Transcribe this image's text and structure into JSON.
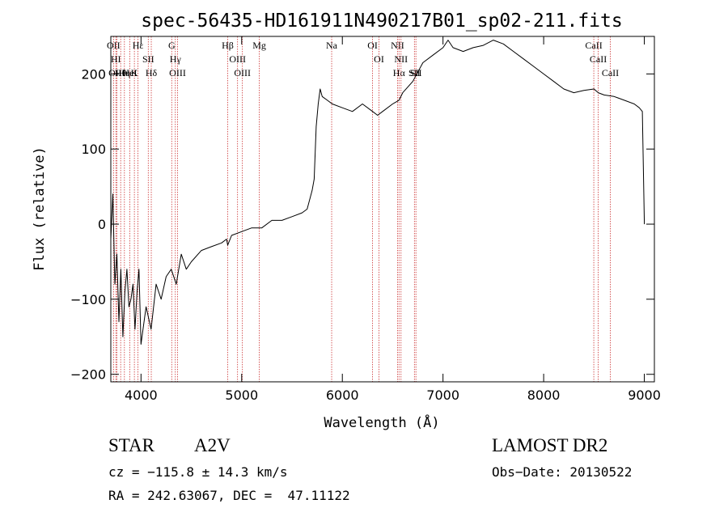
{
  "chart_data": {
    "type": "line",
    "title": "spec-56435-HD161911N490217B01_sp02-211.fits",
    "xlabel": "Wavelength (Å)",
    "ylabel": "Flux (relative)",
    "xlim": [
      3700,
      9100
    ],
    "ylim": [
      -210,
      250
    ],
    "xticks": [
      4000,
      5000,
      6000,
      7000,
      8000,
      9000
    ],
    "yticks": [
      -200,
      -100,
      0,
      100,
      200
    ],
    "grid": false,
    "line_color": "#000000",
    "marker_color": "#cc3333",
    "series": [
      {
        "name": "flux",
        "x": [
          3700,
          3720,
          3740,
          3760,
          3780,
          3800,
          3820,
          3840,
          3860,
          3880,
          3900,
          3920,
          3940,
          3960,
          3980,
          4000,
          4050,
          4100,
          4150,
          4200,
          4250,
          4300,
          4350,
          4400,
          4450,
          4500,
          4600,
          4700,
          4800,
          4850,
          4861,
          4900,
          5000,
          5100,
          5200,
          5300,
          5400,
          5500,
          5600,
          5650,
          5700,
          5720,
          5740,
          5760,
          5780,
          5800,
          5850,
          5900,
          6000,
          6100,
          6200,
          6300,
          6350,
          6400,
          6500,
          6563,
          6600,
          6700,
          6800,
          6900,
          7000,
          7050,
          7100,
          7200,
          7300,
          7400,
          7500,
          7600,
          7700,
          7800,
          7900,
          8000,
          8100,
          8200,
          8300,
          8400,
          8500,
          8542,
          8600,
          8700,
          8800,
          8900,
          8950,
          8980,
          9000
        ],
        "y": [
          -20,
          40,
          -80,
          -40,
          -130,
          -60,
          -150,
          -90,
          -60,
          -110,
          -100,
          -80,
          -140,
          -90,
          -60,
          -160,
          -110,
          -140,
          -80,
          -100,
          -70,
          -60,
          -80,
          -40,
          -60,
          -50,
          -35,
          -30,
          -25,
          -20,
          -28,
          -15,
          -10,
          -5,
          -5,
          5,
          5,
          10,
          15,
          20,
          45,
          60,
          130,
          160,
          180,
          170,
          165,
          160,
          155,
          150,
          160,
          150,
          145,
          150,
          160,
          165,
          175,
          190,
          215,
          225,
          235,
          245,
          235,
          230,
          235,
          238,
          245,
          240,
          230,
          220,
          210,
          200,
          190,
          180,
          175,
          178,
          180,
          175,
          172,
          170,
          165,
          160,
          155,
          150,
          0
        ]
      }
    ],
    "lines": [
      {
        "label": "Hθ",
        "wave": 3798
      },
      {
        "label": "OII",
        "wave": 3727
      },
      {
        "label": "OIII",
        "wave": 3760
      },
      {
        "label": "HI",
        "wave": 3750
      },
      {
        "label": "Hη",
        "wave": 3835
      },
      {
        "label": "HeI",
        "wave": 3889
      },
      {
        "label": "K",
        "wave": 3934
      },
      {
        "label": "Hε",
        "wave": 3970
      },
      {
        "label": "Hδ",
        "wave": 4102
      },
      {
        "label": "SII",
        "wave": 4072
      },
      {
        "label": "G",
        "wave": 4305
      },
      {
        "label": "OIII",
        "wave": 4363
      },
      {
        "label": "Hγ",
        "wave": 4341
      },
      {
        "label": "Hβ",
        "wave": 4861
      },
      {
        "label": "OIII",
        "wave": 4959
      },
      {
        "label": "OIII",
        "wave": 5007
      },
      {
        "label": "Mg",
        "wave": 5175
      },
      {
        "label": "Na",
        "wave": 5894
      },
      {
        "label": "OI",
        "wave": 6300
      },
      {
        "label": "OI",
        "wave": 6364
      },
      {
        "label": "NII",
        "wave": 6548
      },
      {
        "label": "Hα",
        "wave": 6563
      },
      {
        "label": "NII",
        "wave": 6583
      },
      {
        "label": "SII",
        "wave": 6716
      },
      {
        "label": "SII",
        "wave": 6731
      },
      {
        "label": "CaII",
        "wave": 8498
      },
      {
        "label": "CaII",
        "wave": 8542
      },
      {
        "label": "CaII",
        "wave": 8662
      }
    ]
  },
  "info": {
    "type_label": "STAR",
    "subclass": "A2V",
    "survey": "LAMOST DR2",
    "cz": "cz = −115.8 ± 14.3 km/s",
    "obs_date": "Obs−Date: 20130522",
    "radec": "RA = 242.63067, DEC =  47.11122"
  }
}
